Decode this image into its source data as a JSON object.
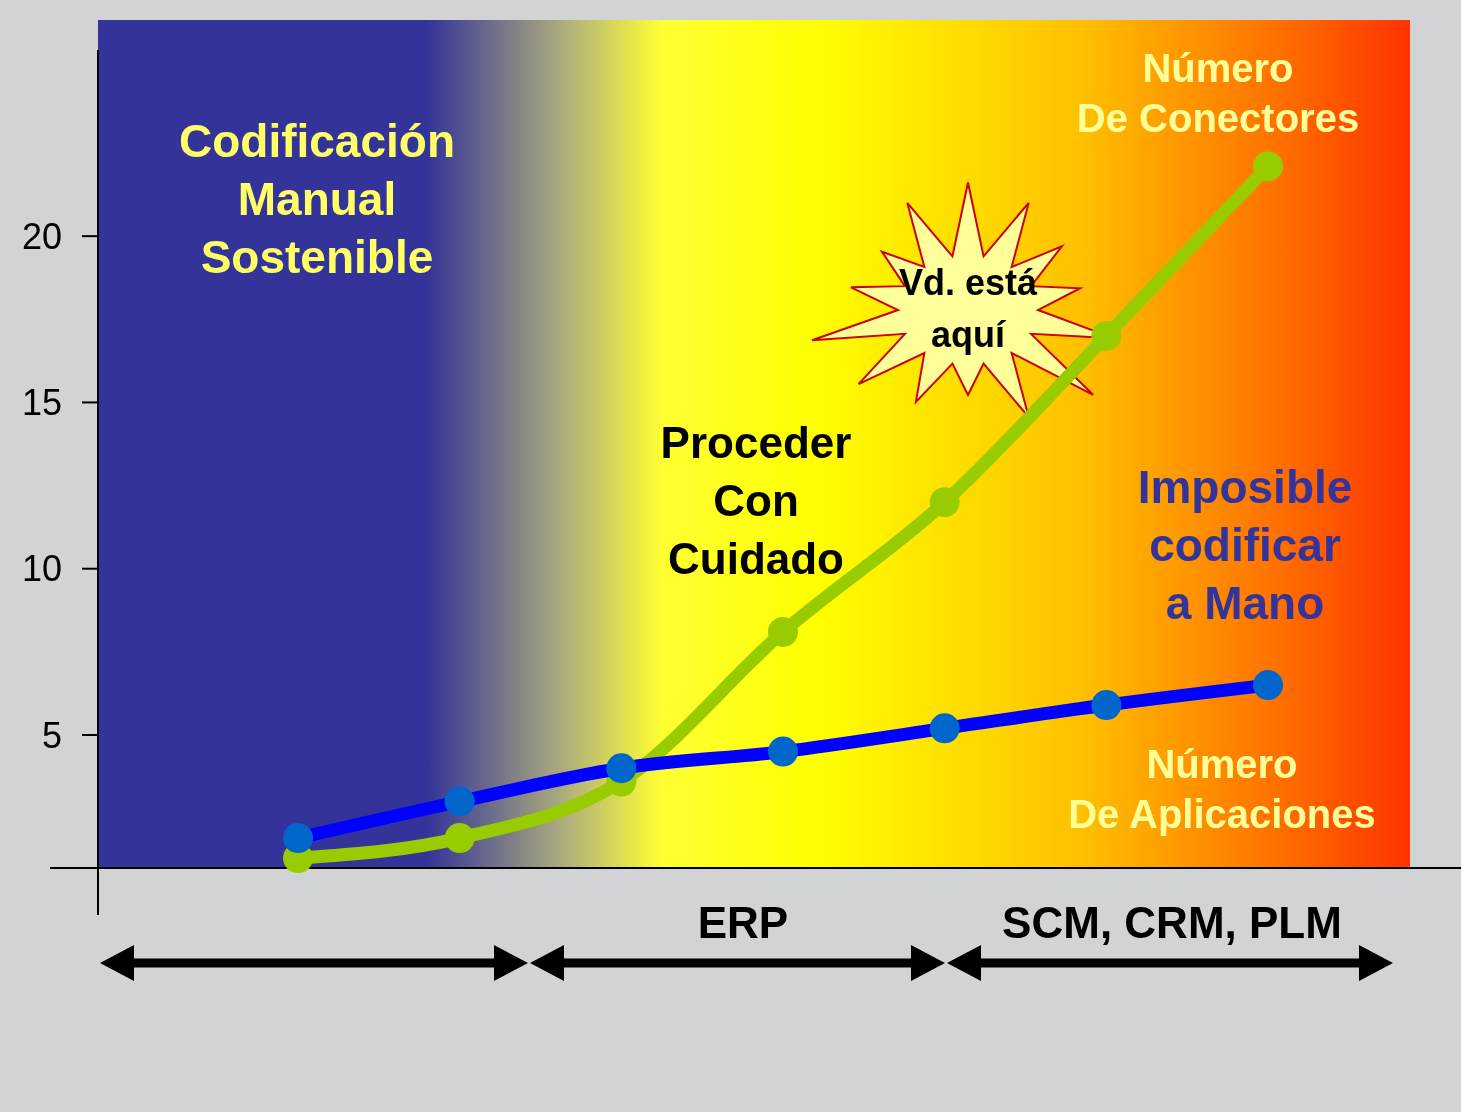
{
  "chart_data": {
    "type": "line",
    "categories": [
      null,
      null,
      null,
      null,
      null,
      null,
      null
    ],
    "series": [
      {
        "name": "Número De Conectores",
        "color": "#99cc00",
        "values": [
          1.3,
          1.9,
          3.6,
          8.1,
          12.0,
          17.0,
          22.1
        ]
      },
      {
        "name": "Número De Aplicaciones",
        "color": "#0000ff",
        "values": [
          1.9,
          3.0,
          4.0,
          4.5,
          5.2,
          5.9,
          6.5
        ]
      }
    ],
    "ylim": [
      1,
      26.5
    ],
    "yticks": [
      5,
      10,
      15,
      20
    ],
    "tick_labels": "y",
    "grid": false,
    "marker": "circle",
    "line_style": "solid",
    "annotations": [
      "Codificación\nManual\nSostenible",
      "Proceder\nCon\nCuidado",
      "Imposible\ncodificar\na Mano",
      "Vd. está\naquí",
      "ERP",
      "SCM, CRM, PLM"
    ]
  }
}
